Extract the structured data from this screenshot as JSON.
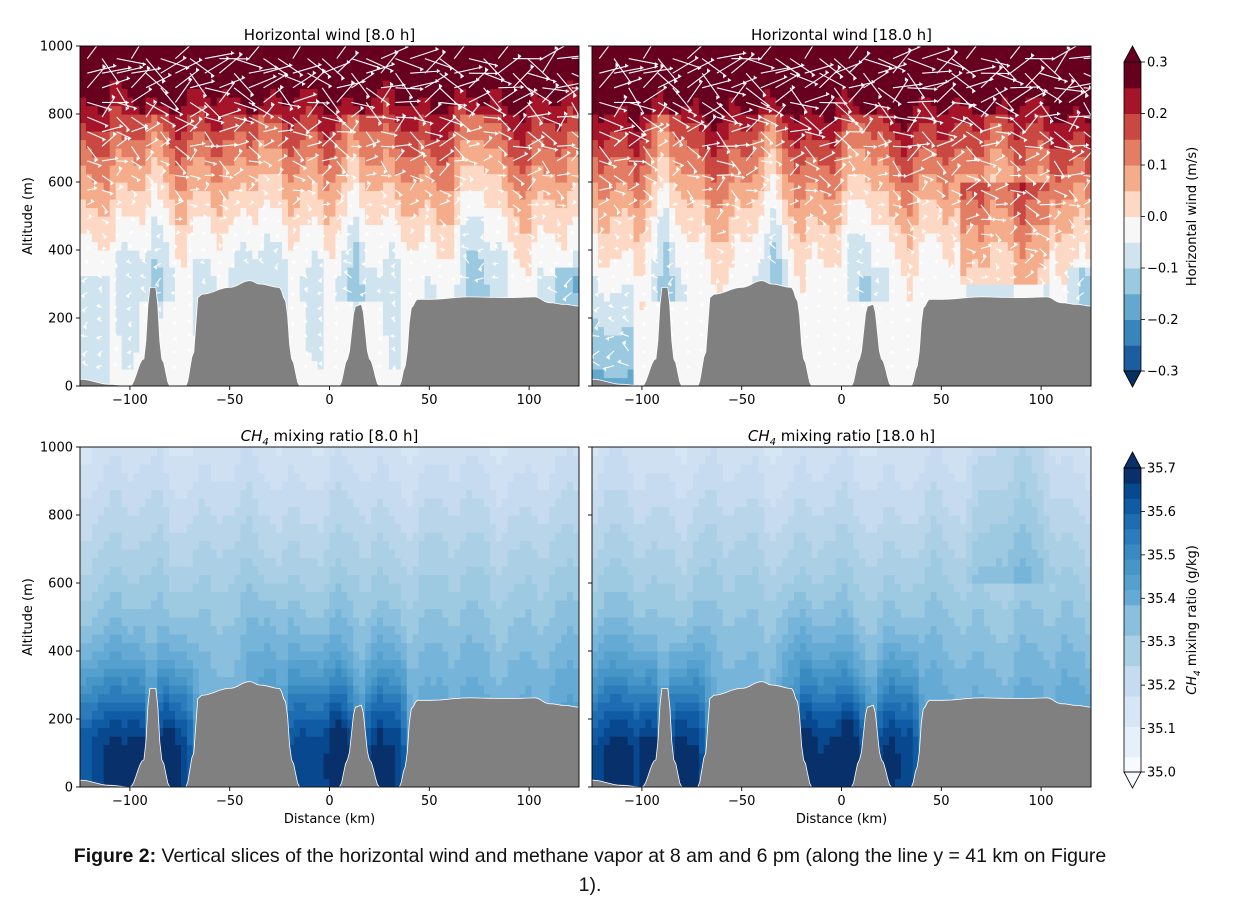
{
  "caption": {
    "label": "Figure 2:",
    "text": "Vertical slices of the horizontal wind and methane vapor at 8 am and 6 pm (along the line y = 41 km on Figure 1)."
  },
  "colors": {
    "terrain": "#808080",
    "wind_neg": "#053061",
    "wind_zero": "#f7f7f7",
    "wind_pos": "#67001f",
    "ch4_low": "#f7fbff",
    "ch4_high": "#08306b",
    "arrow": "#ffffff"
  },
  "chart_data": [
    {
      "type": "heatmap",
      "title": "Horizontal wind [8.0 h]",
      "xlabel": "",
      "ylabel": "Altitude (m)",
      "xlim": [
        -125,
        125
      ],
      "ylim": [
        0,
        1000
      ],
      "xticks": [
        "−100",
        "−50",
        "0",
        "50",
        "100"
      ],
      "yticks": [
        "0",
        "200",
        "400",
        "600",
        "800",
        "1000"
      ],
      "arrows": true
    },
    {
      "type": "heatmap",
      "title": "Horizontal wind [18.0 h]",
      "xlabel": "",
      "ylabel": "",
      "xlim": [
        -125,
        125
      ],
      "ylim": [
        0,
        1000
      ],
      "xticks": [
        "−100",
        "−50",
        "0",
        "50",
        "100"
      ],
      "yticks": [],
      "arrows": true
    },
    {
      "type": "heatmap",
      "title": "CH4 mixing ratio [8.0 h]",
      "title_main": "CH",
      "title_sub": "4",
      "title_rest": " mixing ratio [8.0 h]",
      "xlabel": "Distance (km)",
      "ylabel": "Altitude (m)",
      "xlim": [
        -125,
        125
      ],
      "ylim": [
        0,
        1000
      ],
      "xticks": [
        "−100",
        "−50",
        "0",
        "50",
        "100"
      ],
      "yticks": [
        "0",
        "200",
        "400",
        "600",
        "800",
        "1000"
      ]
    },
    {
      "type": "heatmap",
      "title": "CH4 mixing ratio [18.0 h]",
      "title_main": "CH",
      "title_sub": "4",
      "title_rest": " mixing ratio [18.0 h]",
      "xlabel": "Distance (km)",
      "ylabel": "",
      "xlim": [
        -125,
        125
      ],
      "ylim": [
        0,
        1000
      ],
      "xticks": [
        "−100",
        "−50",
        "0",
        "50",
        "100"
      ],
      "yticks": []
    }
  ],
  "terrain": {
    "x_km": [
      -125,
      -110,
      -100,
      -93,
      -90,
      -87,
      -84,
      -80,
      -72,
      -68,
      -66,
      -64,
      -50,
      -40,
      -35,
      -25,
      -22,
      -19,
      -15,
      5,
      9,
      13,
      16,
      20,
      25,
      35,
      38,
      41,
      44,
      50,
      70,
      90,
      103,
      110,
      118,
      125
    ],
    "alt_m": [
      20,
      5,
      0,
      80,
      290,
      290,
      80,
      0,
      0,
      100,
      260,
      270,
      290,
      310,
      300,
      290,
      250,
      80,
      0,
      0,
      80,
      235,
      240,
      80,
      0,
      0,
      60,
      230,
      255,
      255,
      262,
      260,
      262,
      245,
      240,
      235
    ]
  },
  "colorbars": [
    {
      "label": "Horizontal wind (m/s)",
      "vmin": -0.3,
      "vmax": 0.3,
      "ticks": [
        {
          "v": 0.3,
          "t": "0.3"
        },
        {
          "v": 0.2,
          "t": "0.2"
        },
        {
          "v": 0.1,
          "t": "0.1"
        },
        {
          "v": 0.0,
          "t": "0.0"
        },
        {
          "v": -0.1,
          "t": "−0.1"
        },
        {
          "v": -0.2,
          "t": "−0.2"
        },
        {
          "v": -0.3,
          "t": "−0.3"
        }
      ]
    },
    {
      "label": "CH4 mixing ratio (g/kg)",
      "label_main": "CH",
      "label_sub": "4",
      "label_rest": " mixing ratio (g/kg)",
      "vmin": 35.0,
      "vmax": 35.7,
      "ticks": [
        {
          "v": 35.7,
          "t": "35.7"
        },
        {
          "v": 35.6,
          "t": "35.6"
        },
        {
          "v": 35.5,
          "t": "35.5"
        },
        {
          "v": 35.4,
          "t": "35.4"
        },
        {
          "v": 35.3,
          "t": "35.3"
        },
        {
          "v": 35.2,
          "t": "35.2"
        },
        {
          "v": 35.1,
          "t": "35.1"
        },
        {
          "v": 35.0,
          "t": "35.0"
        }
      ]
    }
  ]
}
